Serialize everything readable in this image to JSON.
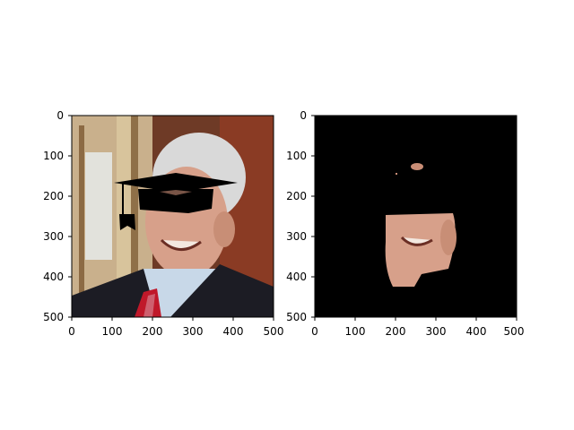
{
  "figure": {
    "background": "#ffffff",
    "axis_color": "#000000",
    "panels": [
      {
        "name": "left-panel",
        "content": "portrait-with-graduation-cap-overlay",
        "x_ticks": [
          "0",
          "100",
          "200",
          "300",
          "400",
          "500"
        ],
        "y_ticks": [
          "0",
          "100",
          "200",
          "300",
          "400",
          "500"
        ]
      },
      {
        "name": "right-panel",
        "content": "segmented-face-on-black",
        "x_ticks": [
          "0",
          "100",
          "200",
          "300",
          "400",
          "500"
        ],
        "y_ticks": [
          "0",
          "100",
          "200",
          "300",
          "400",
          "500"
        ]
      }
    ]
  },
  "colors": {
    "skin": "#d7a08a",
    "skin_shadow": "#b97d68",
    "hair": "#d9d9d9",
    "suit": "#1c1c24",
    "shirt": "#c8d8e8",
    "tie": "#c0182a",
    "background_brick": "#8a3b24",
    "curtain": "#c9b08c",
    "cap": "#000000",
    "mask_bg": "#000000"
  }
}
